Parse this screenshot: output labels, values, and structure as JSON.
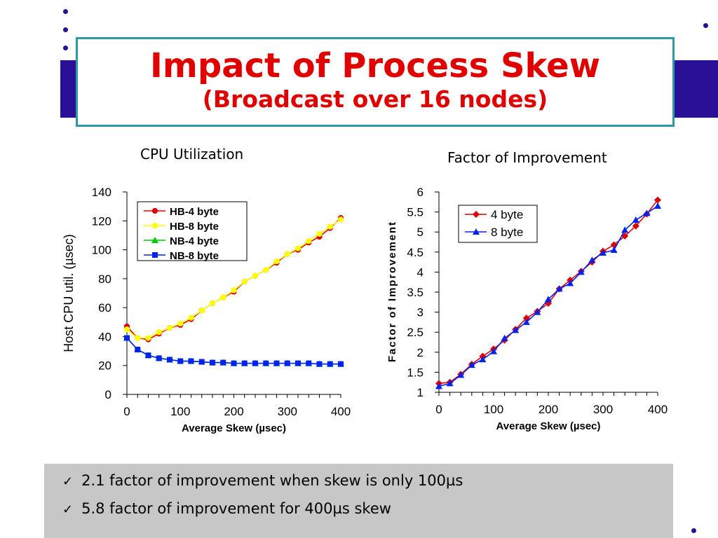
{
  "slide": {
    "title": "Impact of Process Skew",
    "subtitle": "(Broadcast over 16 nodes)",
    "colors": {
      "title": "#e00000",
      "band": "#2a0f97",
      "border": "#2c9aa6",
      "notes_bg": "#c7c7c7"
    }
  },
  "notes": [
    {
      "icon": "check-icon",
      "text": "2.1 factor of improvement when skew is only 100µs"
    },
    {
      "icon": "check-icon",
      "text": "5.8 factor of improvement for 400µs skew"
    }
  ],
  "chart_data": [
    {
      "type": "line",
      "title": "CPU Utilization",
      "xlabel": "Average Skew (µsec)",
      "ylabel": "Host CPU util. (µsec)",
      "xlim": [
        0,
        400
      ],
      "ylim": [
        0,
        140
      ],
      "xticks": [
        0,
        100,
        200,
        300,
        400
      ],
      "yticks": [
        0,
        20,
        40,
        60,
        80,
        100,
        120,
        140
      ],
      "grid": false,
      "legend_position": "top-left",
      "x": [
        0,
        20,
        40,
        60,
        80,
        100,
        120,
        140,
        160,
        180,
        200,
        220,
        240,
        260,
        280,
        300,
        320,
        340,
        360,
        380,
        400
      ],
      "series": [
        {
          "name": "HB-4 byte",
          "color": "#e00000",
          "marker": "circle",
          "values": [
            47,
            39,
            38,
            42,
            46,
            48,
            52,
            58,
            63,
            67,
            71,
            78,
            82,
            86,
            91,
            97,
            100,
            105,
            109,
            115,
            122
          ]
        },
        {
          "name": "HB-8 byte",
          "color": "#ffff00",
          "marker": "circle",
          "values": [
            45,
            39,
            39,
            43,
            46,
            49,
            53,
            58,
            63,
            67,
            72,
            78,
            82,
            86,
            92,
            97,
            101,
            106,
            111,
            116,
            121
          ]
        },
        {
          "name": "NB-4 byte",
          "color": "#00cc00",
          "marker": "triangle",
          "values": [
            39,
            31,
            27,
            25,
            24,
            23,
            23,
            22.5,
            22,
            22,
            21.5,
            21.5,
            21.5,
            21.5,
            21.5,
            21.5,
            21.5,
            21.5,
            21,
            21,
            21
          ]
        },
        {
          "name": "NB-8 byte",
          "color": "#0022ee",
          "marker": "square",
          "values": [
            39,
            31,
            27,
            25,
            24,
            23,
            23,
            22.5,
            22,
            22,
            21.5,
            21.5,
            21.5,
            21.5,
            21.5,
            21.5,
            21.5,
            21.5,
            21,
            21,
            21
          ]
        }
      ]
    },
    {
      "type": "line",
      "title": "Factor of Improvement",
      "xlabel": "Average Skew (µsec)",
      "ylabel": "Factor of Improvement",
      "xlim": [
        0,
        400
      ],
      "ylim": [
        1,
        6
      ],
      "xticks": [
        0,
        100,
        200,
        300,
        400
      ],
      "yticks": [
        1,
        1.5,
        2,
        2.5,
        3,
        3.5,
        4,
        4.5,
        5,
        5.5,
        6
      ],
      "grid": false,
      "legend_position": "top-left",
      "x": [
        0,
        20,
        40,
        60,
        80,
        100,
        120,
        140,
        160,
        180,
        200,
        220,
        240,
        260,
        280,
        300,
        320,
        340,
        360,
        380,
        400
      ],
      "series": [
        {
          "name": "4 byte",
          "color": "#e00000",
          "marker": "diamond",
          "values": [
            1.22,
            1.25,
            1.45,
            1.7,
            1.9,
            2.08,
            2.3,
            2.57,
            2.85,
            3.02,
            3.22,
            3.58,
            3.8,
            4.02,
            4.25,
            4.52,
            4.68,
            4.9,
            5.15,
            5.45,
            5.8
          ]
        },
        {
          "name": "8 byte",
          "color": "#0022ee",
          "marker": "triangle",
          "values": [
            1.15,
            1.22,
            1.43,
            1.68,
            1.82,
            2.02,
            2.35,
            2.55,
            2.75,
            3.0,
            3.32,
            3.58,
            3.72,
            4.0,
            4.3,
            4.48,
            4.55,
            5.05,
            5.3,
            5.47,
            5.65
          ]
        }
      ]
    }
  ]
}
